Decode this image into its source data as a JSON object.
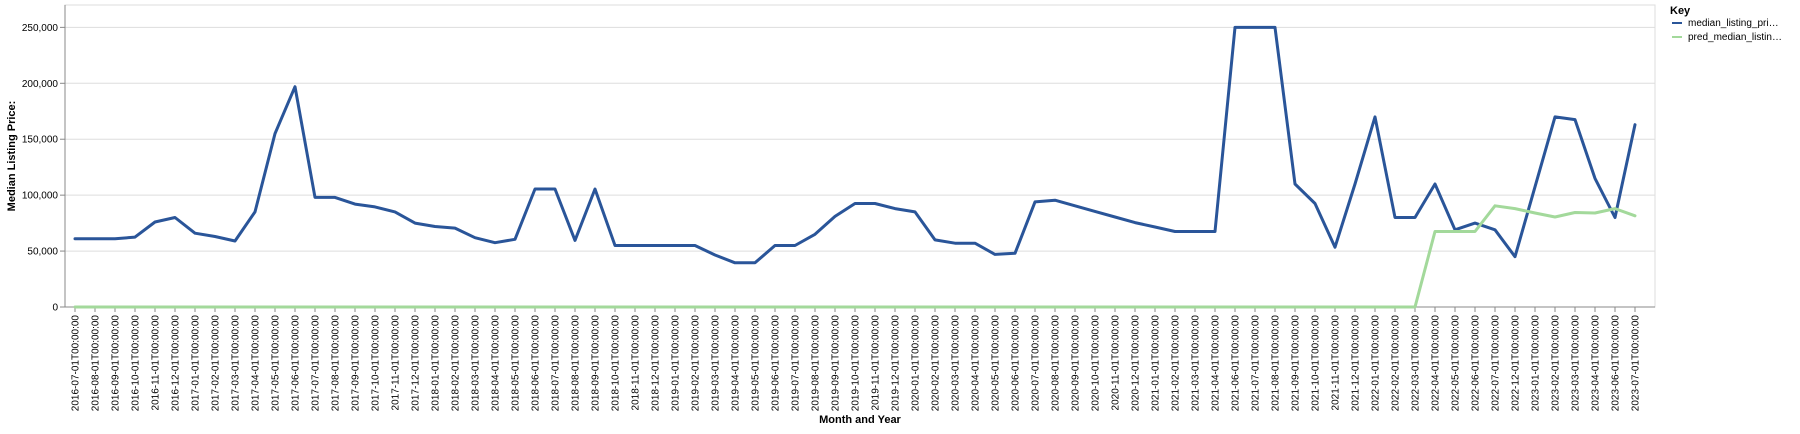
{
  "chart_data": {
    "type": "line",
    "title": "",
    "xlabel": "Month and Year",
    "ylabel": "Median Listing Price:",
    "ylim": [
      0,
      270000
    ],
    "yticks": [
      0,
      50000,
      100000,
      150000,
      200000,
      250000
    ],
    "ytick_labels": [
      "0",
      "50,000",
      "100,000",
      "150,000",
      "200,000",
      "250,000"
    ],
    "grid": true,
    "legend": {
      "title": "Key",
      "placement": "top-right",
      "entries": [
        {
          "label": "median_listing_pri…",
          "color": "#2a5599"
        },
        {
          "label": "pred_median_listin…",
          "color": "#a3d99b"
        }
      ]
    },
    "categories": [
      "2016-07-01T00:00:00",
      "2016-08-01T00:00:00",
      "2016-09-01T00:00:00",
      "2016-10-01T00:00:00",
      "2016-11-01T00:00:00",
      "2016-12-01T00:00:00",
      "2017-01-01T00:00:00",
      "2017-02-01T00:00:00",
      "2017-03-01T00:00:00",
      "2017-04-01T00:00:00",
      "2017-05-01T00:00:00",
      "2017-06-01T00:00:00",
      "2017-07-01T00:00:00",
      "2017-08-01T00:00:00",
      "2017-09-01T00:00:00",
      "2017-10-01T00:00:00",
      "2017-11-01T00:00:00",
      "2017-12-01T00:00:00",
      "2018-01-01T00:00:00",
      "2018-02-01T00:00:00",
      "2018-03-01T00:00:00",
      "2018-04-01T00:00:00",
      "2018-05-01T00:00:00",
      "2018-06-01T00:00:00",
      "2018-07-01T00:00:00",
      "2018-08-01T00:00:00",
      "2018-09-01T00:00:00",
      "2018-10-01T00:00:00",
      "2018-11-01T00:00:00",
      "2018-12-01T00:00:00",
      "2019-01-01T00:00:00",
      "2019-02-01T00:00:00",
      "2019-03-01T00:00:00",
      "2019-04-01T00:00:00",
      "2019-05-01T00:00:00",
      "2019-06-01T00:00:00",
      "2019-07-01T00:00:00",
      "2019-08-01T00:00:00",
      "2019-09-01T00:00:00",
      "2019-10-01T00:00:00",
      "2019-11-01T00:00:00",
      "2019-12-01T00:00:00",
      "2020-01-01T00:00:00",
      "2020-02-01T00:00:00",
      "2020-03-01T00:00:00",
      "2020-04-01T00:00:00",
      "2020-05-01T00:00:00",
      "2020-06-01T00:00:00",
      "2020-07-01T00:00:00",
      "2020-08-01T00:00:00",
      "2020-09-01T00:00:00",
      "2020-10-01T00:00:00",
      "2020-11-01T00:00:00",
      "2020-12-01T00:00:00",
      "2021-01-01T00:00:00",
      "2021-02-01T00:00:00",
      "2021-03-01T00:00:00",
      "2021-04-01T00:00:00",
      "2021-06-01T00:00:00",
      "2021-07-01T00:00:00",
      "2021-08-01T00:00:00",
      "2021-09-01T00:00:00",
      "2021-10-01T00:00:00",
      "2021-11-01T00:00:00",
      "2021-12-01T00:00:00",
      "2022-01-01T00:00:00",
      "2022-02-01T00:00:00",
      "2022-03-01T00:00:00",
      "2022-04-01T00:00:00",
      "2022-05-01T00:00:00",
      "2022-06-01T00:00:00",
      "2022-07-01T00:00:00",
      "2022-12-01T00:00:00",
      "2023-01-01T00:00:00",
      "2023-02-01T00:00:00",
      "2023-03-01T00:00:00",
      "2023-04-01T00:00:00",
      "2023-06-01T00:00:00",
      "2023-07-01T00:00:00"
    ],
    "series": [
      {
        "name": "median_listing_pri…",
        "color": "#2a5599",
        "values": [
          61000,
          61000,
          61000,
          62500,
          76000,
          80000,
          66000,
          63000,
          59000,
          85000,
          155000,
          197000,
          98000,
          98000,
          92000,
          89500,
          85000,
          75000,
          72000,
          70500,
          62000,
          57500,
          60500,
          105500,
          105500,
          59500,
          105500,
          55000,
          55000,
          55000,
          55000,
          55000,
          46500,
          39500,
          39500,
          55000,
          55000,
          65000,
          81000,
          92500,
          92500,
          88000,
          85000,
          60000,
          57000,
          57000,
          47000,
          48000,
          94000,
          95500,
          90500,
          85500,
          80500,
          75500,
          71500,
          67500,
          67500,
          67500,
          250000,
          250000,
          250000,
          110000,
          92500,
          53500,
          110000,
          170000,
          80000,
          80000,
          110000,
          69000,
          75000,
          69000,
          45000,
          107500,
          170000,
          167500,
          115000,
          80000,
          163000
        ]
      },
      {
        "name": "pred_median_listin…",
        "color": "#a3d99b",
        "values": [
          0,
          0,
          0,
          0,
          0,
          0,
          0,
          0,
          0,
          0,
          0,
          0,
          0,
          0,
          0,
          0,
          0,
          0,
          0,
          0,
          0,
          0,
          0,
          0,
          0,
          0,
          0,
          0,
          0,
          0,
          0,
          0,
          0,
          0,
          0,
          0,
          0,
          0,
          0,
          0,
          0,
          0,
          0,
          0,
          0,
          0,
          0,
          0,
          0,
          0,
          0,
          0,
          0,
          0,
          0,
          0,
          0,
          0,
          0,
          0,
          0,
          0,
          0,
          0,
          0,
          0,
          0,
          0,
          67500,
          67500,
          67500,
          90500,
          88000,
          84000,
          80500,
          84500,
          84000,
          88000,
          81500
        ]
      }
    ]
  }
}
